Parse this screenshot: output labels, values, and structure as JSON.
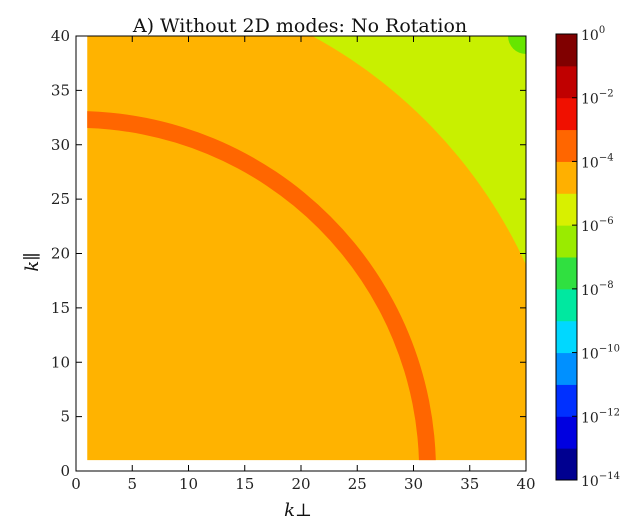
{
  "chart_data": {
    "type": "heatmap",
    "title": "A) Without 2D modes: No Rotation",
    "xlabel": "k⊥",
    "ylabel": "k∥",
    "xlim": [
      0,
      40
    ],
    "ylim": [
      0,
      40
    ],
    "xticks": [
      "0",
      "5",
      "10",
      "15",
      "20",
      "25",
      "30",
      "35",
      "40"
    ],
    "yticks": [
      "0",
      "5",
      "10",
      "15",
      "20",
      "25",
      "30",
      "35",
      "40"
    ],
    "grid": false,
    "data_extent": {
      "kperp_min": 1,
      "kpar_min": 1
    },
    "regions": [
      {
        "name": "background",
        "level": "1e-5",
        "color": "#FFB300"
      },
      {
        "name": "ring",
        "level": "1e-4",
        "color": "#FF6600",
        "k_inner": 30.5,
        "k_outer": 32.0
      },
      {
        "name": "corner",
        "level": "1e-6",
        "color": "#C8F000",
        "k_threshold": 44
      },
      {
        "name": "corner-tip",
        "level": "1e-7",
        "color": "#66E600"
      }
    ],
    "colorbar": {
      "scale": "log",
      "range": [
        -14,
        0
      ],
      "labels": [
        "10^0",
        "10^-2",
        "10^-4",
        "10^-6",
        "10^-8",
        "10^-10",
        "10^-12",
        "10^-14"
      ],
      "exponents": [
        0,
        -2,
        -4,
        -6,
        -8,
        -10,
        -12,
        -14
      ],
      "colors": [
        "#000090",
        "#0000E0",
        "#0030FF",
        "#0090FF",
        "#00D8FF",
        "#00E8A0",
        "#30E040",
        "#9AEB00",
        "#D8F000",
        "#FFB000",
        "#FF6600",
        "#F01000",
        "#C00000",
        "#800000"
      ]
    }
  }
}
